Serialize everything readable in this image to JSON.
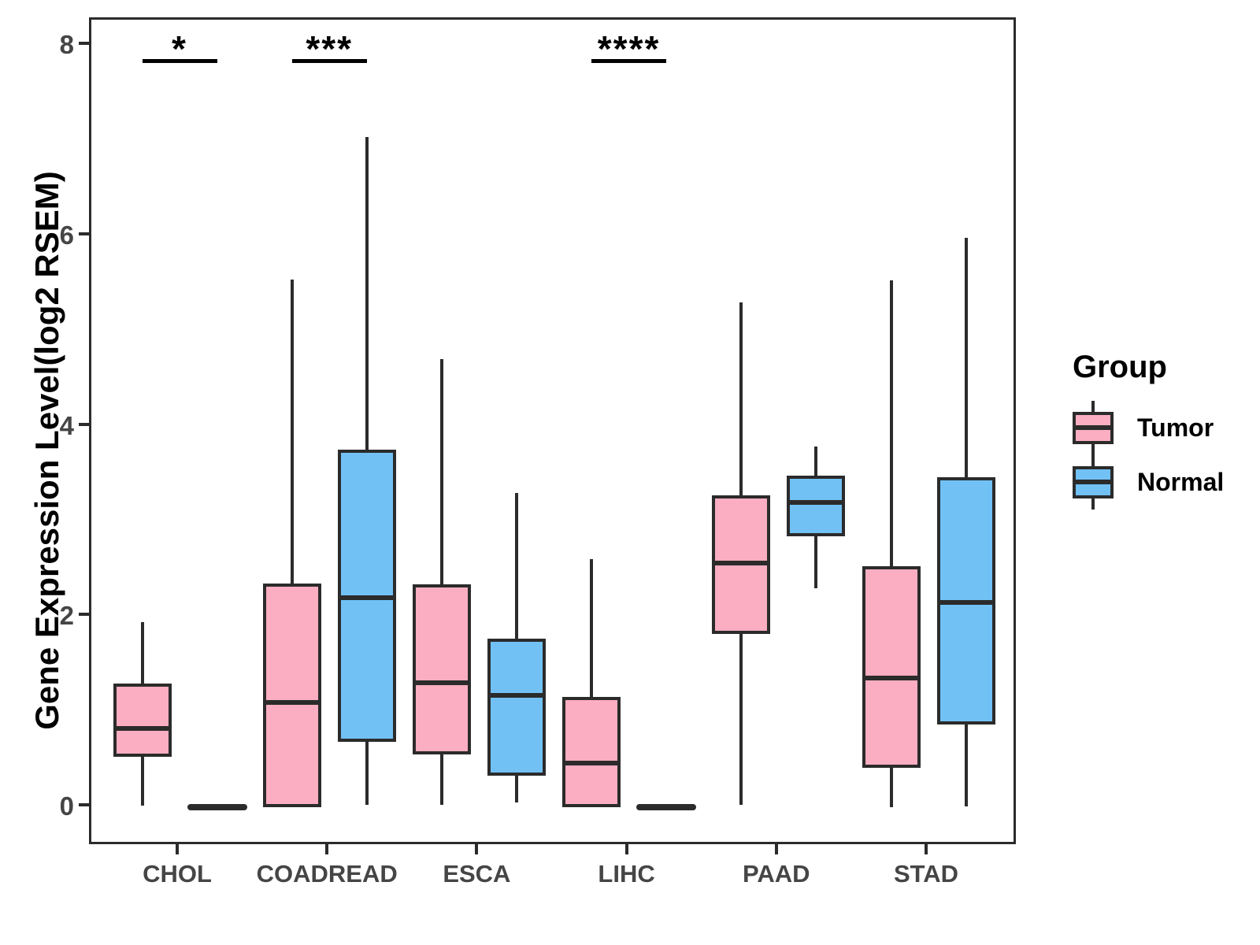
{
  "chart_data": {
    "type": "boxplot",
    "title": "",
    "xlabel": "",
    "ylabel": "Gene Expression Level(log2 RSEM)",
    "ylim": [
      -0.41,
      8.27
    ],
    "yticks": [
      0,
      2,
      4,
      6,
      8
    ],
    "grid": false,
    "categories": [
      "CHOL",
      "COADREAD",
      "ESCA",
      "LIHC",
      "PAAD",
      "STAD"
    ],
    "series": [
      {
        "name": "Tumor",
        "color": "#FBAEC1",
        "boxes": [
          {
            "category": "CHOL",
            "flat": false,
            "low": 0.02,
            "q1": 0.53,
            "median": 0.83,
            "q3": 1.3,
            "high": 1.95
          },
          {
            "category": "COADREAD",
            "flat": false,
            "low": 0.0,
            "q1": 0.0,
            "median": 1.1,
            "q3": 2.35,
            "high": 5.54
          },
          {
            "category": "ESCA",
            "flat": false,
            "low": 0.03,
            "q1": 0.56,
            "median": 1.31,
            "q3": 2.34,
            "high": 4.71
          },
          {
            "category": "LIHC",
            "flat": false,
            "low": 0.0,
            "q1": 0.0,
            "median": 0.47,
            "q3": 1.16,
            "high": 2.61
          },
          {
            "category": "PAAD",
            "flat": false,
            "low": 0.03,
            "q1": 1.82,
            "median": 2.57,
            "q3": 3.28,
            "high": 5.3
          },
          {
            "category": "STAD",
            "flat": false,
            "low": 0.0,
            "q1": 0.42,
            "median": 1.36,
            "q3": 2.53,
            "high": 5.53
          }
        ]
      },
      {
        "name": "Normal",
        "color": "#71C1F5",
        "boxes": [
          {
            "category": "CHOL",
            "flat": true,
            "low": 0,
            "q1": 0,
            "median": 0,
            "q3": 0,
            "high": 0
          },
          {
            "category": "COADREAD",
            "flat": false,
            "low": 0.03,
            "q1": 0.69,
            "median": 2.2,
            "q3": 3.76,
            "high": 7.04
          },
          {
            "category": "ESCA",
            "flat": false,
            "low": 0.05,
            "q1": 0.33,
            "median": 1.18,
            "q3": 1.77,
            "high": 3.3
          },
          {
            "category": "LIHC",
            "flat": true,
            "low": 0,
            "q1": 0,
            "median": 0,
            "q3": 0,
            "high": 0
          },
          {
            "category": "PAAD",
            "flat": false,
            "low": 2.3,
            "q1": 2.85,
            "median": 3.2,
            "q3": 3.48,
            "high": 3.79
          },
          {
            "category": "STAD",
            "flat": false,
            "low": 0.01,
            "q1": 0.87,
            "median": 2.15,
            "q3": 3.47,
            "high": 5.98
          }
        ]
      }
    ],
    "significance": [
      {
        "category": "CHOL",
        "label": "*"
      },
      {
        "category": "COADREAD",
        "label": "***"
      },
      {
        "category": "LIHC",
        "label": "****"
      }
    ],
    "legend": {
      "title": "Group",
      "position": "right",
      "items": [
        {
          "label": "Tumor",
          "color": "#FBAEC1"
        },
        {
          "label": "Normal",
          "color": "#71C1F5"
        }
      ]
    }
  }
}
